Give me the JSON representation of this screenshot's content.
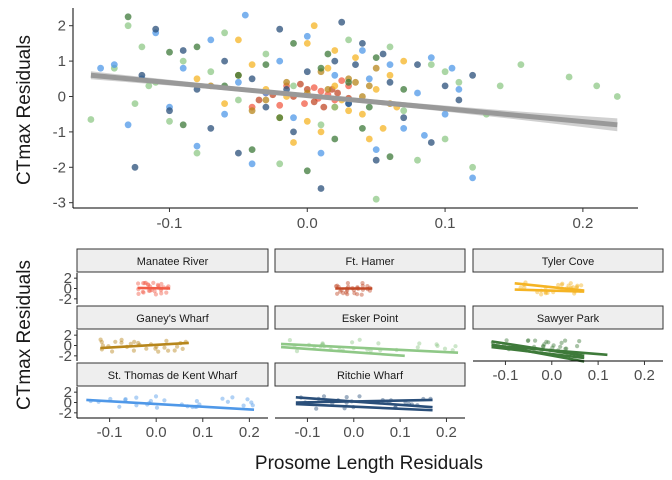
{
  "chart_data": [
    {
      "type": "scatter",
      "title": "",
      "xlabel": "",
      "ylabel": "CTmax Residuals",
      "xlim": [
        -0.17,
        0.24
      ],
      "ylim": [
        -3.15,
        2.5
      ],
      "xticks": [
        "-0.1",
        "0.0",
        "0.1",
        "0.2"
      ],
      "yticks": [
        "-3",
        "-2",
        "-1",
        "0",
        "1",
        "2"
      ],
      "grid": false,
      "legend": "none",
      "trend": {
        "x": [
          -0.157,
          0.225
        ],
        "y": [
          0.6,
          -0.8
        ],
        "ci_half_width_ends": 0.18,
        "ci_half_width_mid": 0.06
      },
      "series": [
        {
          "color": "#f25c46",
          "values": [
            [
              -0.015,
              0.3
            ],
            [
              -0.03,
              0.1
            ],
            [
              -0.002,
              -0.2
            ],
            [
              0.005,
              0.25
            ],
            [
              0.015,
              0.05
            ],
            [
              0.02,
              -0.1
            ],
            [
              -0.04,
              -0.3
            ],
            [
              0.025,
              0.45
            ],
            [
              0.008,
              -0.05
            ],
            [
              -0.02,
              -0.25
            ],
            [
              0.01,
              0.15
            ],
            [
              0.03,
              0.3
            ]
          ]
        },
        {
          "color": "#c24a28",
          "values": [
            [
              -0.01,
              0.0
            ],
            [
              0.005,
              -0.15
            ],
            [
              0.018,
              0.2
            ],
            [
              -0.025,
              0.05
            ],
            [
              0.012,
              -0.3
            ],
            [
              0.022,
              0.1
            ],
            [
              -0.005,
              0.35
            ],
            [
              0.03,
              -0.05
            ],
            [
              -0.035,
              -0.1
            ],
            [
              0.0,
              0.2
            ]
          ]
        },
        {
          "color": "#f5b424",
          "values": [
            [
              -0.08,
              0.5
            ],
            [
              -0.06,
              -0.2
            ],
            [
              -0.04,
              0.9
            ],
            [
              -0.02,
              -0.6
            ],
            [
              0.0,
              1.5
            ],
            [
              0.005,
              2.0
            ],
            [
              0.01,
              -1.0
            ],
            [
              0.02,
              0.3
            ],
            [
              0.03,
              -0.4
            ],
            [
              0.035,
              1.1
            ],
            [
              0.045,
              -1.2
            ],
            [
              0.05,
              0.2
            ],
            [
              0.055,
              -0.9
            ],
            [
              0.06,
              0.6
            ],
            [
              0.065,
              -0.3
            ],
            [
              -0.03,
              0.2
            ],
            [
              -0.01,
              -1.3
            ],
            [
              0.015,
              0.8
            ],
            [
              0.025,
              -0.1
            ],
            [
              0.04,
              -0.5
            ],
            [
              0.07,
              1.0
            ],
            [
              -0.05,
              1.6
            ],
            [
              0.0,
              -0.7
            ],
            [
              0.02,
              1.3
            ],
            [
              -0.015,
              0.0
            ]
          ]
        },
        {
          "color": "#b7861b",
          "values": [
            [
              -0.07,
              0.3
            ],
            [
              -0.05,
              0.6
            ],
            [
              -0.03,
              -0.1
            ],
            [
              -0.015,
              0.4
            ],
            [
              0.0,
              0.1
            ],
            [
              0.01,
              0.7
            ],
            [
              0.02,
              -0.3
            ],
            [
              0.03,
              0.5
            ],
            [
              0.04,
              0.0
            ],
            [
              0.05,
              0.8
            ],
            [
              0.06,
              -0.2
            ],
            [
              0.015,
              0.2
            ],
            [
              0.035,
              0.4
            ],
            [
              -0.04,
              -0.4
            ],
            [
              0.045,
              0.3
            ]
          ]
        },
        {
          "color": "#8fc887",
          "values": [
            [
              -0.157,
              -0.65
            ],
            [
              -0.13,
              2.0
            ],
            [
              -0.125,
              -0.2
            ],
            [
              -0.12,
              1.4
            ],
            [
              -0.11,
              0.4
            ],
            [
              -0.1,
              -0.7
            ],
            [
              -0.09,
              1.0
            ],
            [
              -0.08,
              -1.6
            ],
            [
              -0.07,
              0.7
            ],
            [
              -0.05,
              -0.1
            ],
            [
              -0.03,
              1.2
            ],
            [
              -0.02,
              -1.9
            ],
            [
              -0.01,
              0.3
            ],
            [
              0.01,
              -0.8
            ],
            [
              0.03,
              1.6
            ],
            [
              0.05,
              -2.9
            ],
            [
              0.07,
              -0.4
            ],
            [
              0.09,
              0.9
            ],
            [
              0.1,
              -1.2
            ],
            [
              0.12,
              -2.0
            ],
            [
              0.14,
              0.3
            ],
            [
              0.155,
              0.9
            ],
            [
              0.19,
              0.55
            ],
            [
              0.21,
              0.3
            ],
            [
              0.225,
              0.0
            ],
            [
              0.11,
              0.4
            ],
            [
              -0.14,
              0.8
            ],
            [
              0.06,
              1.4
            ],
            [
              0.08,
              -1.8
            ],
            [
              0.13,
              -0.5
            ],
            [
              -0.06,
              1.8
            ],
            [
              0.02,
              -0.3
            ],
            [
              0.1,
              0.7
            ],
            [
              -0.115,
              0.3
            ]
          ]
        },
        {
          "color": "#3e7a3a",
          "values": [
            [
              -0.13,
              2.25
            ],
            [
              -0.1,
              1.25
            ],
            [
              -0.09,
              -0.8
            ],
            [
              -0.08,
              1.4
            ],
            [
              -0.06,
              0.3
            ],
            [
              -0.04,
              -1.5
            ],
            [
              -0.03,
              0.9
            ],
            [
              -0.02,
              -0.6
            ],
            [
              -0.01,
              1.5
            ],
            [
              0.0,
              -2.1
            ],
            [
              0.01,
              0.8
            ],
            [
              0.02,
              -1.2
            ],
            [
              0.03,
              0.4
            ],
            [
              0.04,
              -0.9
            ],
            [
              0.05,
              1.1
            ],
            [
              0.06,
              -1.7
            ],
            [
              0.07,
              0.2
            ],
            [
              -0.05,
              0.6
            ],
            [
              0.015,
              1.2
            ],
            [
              0.045,
              -0.3
            ]
          ]
        },
        {
          "color": "#4f98e8",
          "values": [
            [
              -0.14,
              0.9
            ],
            [
              -0.13,
              -0.8
            ],
            [
              -0.12,
              0.5
            ],
            [
              -0.11,
              1.8
            ],
            [
              -0.1,
              -0.3
            ],
            [
              -0.09,
              0.8
            ],
            [
              -0.08,
              -1.4
            ],
            [
              -0.07,
              1.6
            ],
            [
              -0.05,
              0.4
            ],
            [
              -0.045,
              2.3
            ],
            [
              -0.04,
              -1.9
            ],
            [
              -0.03,
              0.1
            ],
            [
              -0.02,
              1.0
            ],
            [
              -0.01,
              -0.6
            ],
            [
              0.0,
              1.7
            ],
            [
              0.01,
              -1.6
            ],
            [
              0.02,
              0.6
            ],
            [
              0.03,
              -0.2
            ],
            [
              0.04,
              1.3
            ],
            [
              0.05,
              -1.5
            ],
            [
              0.06,
              0.9
            ],
            [
              0.07,
              -0.9
            ],
            [
              0.08,
              0.1
            ],
            [
              0.09,
              1.1
            ],
            [
              0.1,
              -0.5
            ],
            [
              0.11,
              0.2
            ],
            [
              0.12,
              -2.3
            ],
            [
              0.105,
              0.8
            ],
            [
              -0.15,
              0.8
            ],
            [
              0.085,
              -1.1
            ],
            [
              -0.06,
              -0.5
            ],
            [
              0.045,
              0.5
            ]
          ]
        },
        {
          "color": "#2a4f7a",
          "values": [
            [
              -0.125,
              -2.0
            ],
            [
              -0.12,
              0.6
            ],
            [
              -0.11,
              1.9
            ],
            [
              -0.1,
              -0.4
            ],
            [
              -0.09,
              1.3
            ],
            [
              -0.08,
              0.2
            ],
            [
              -0.07,
              -0.9
            ],
            [
              -0.06,
              1.0
            ],
            [
              -0.05,
              -1.6
            ],
            [
              -0.04,
              0.5
            ],
            [
              -0.03,
              -0.3
            ],
            [
              -0.02,
              1.9
            ],
            [
              -0.01,
              -1.0
            ],
            [
              0.0,
              0.7
            ],
            [
              0.01,
              -2.6
            ],
            [
              0.02,
              1.0
            ],
            [
              0.025,
              2.1
            ],
            [
              0.03,
              -0.2
            ],
            [
              0.04,
              1.5
            ],
            [
              0.05,
              -1.8
            ],
            [
              0.06,
              0.4
            ],
            [
              0.07,
              -0.6
            ],
            [
              0.08,
              0.9
            ],
            [
              0.09,
              -1.3
            ],
            [
              0.1,
              0.3
            ],
            [
              0.11,
              -0.1
            ],
            [
              0.12,
              0.6
            ],
            [
              -0.015,
              0.2
            ],
            [
              0.035,
              0.9
            ],
            [
              0.055,
              1.2
            ]
          ]
        }
      ]
    },
    {
      "type": "scatter",
      "facets": true,
      "xlabel": "Prosome Length Residuals",
      "ylabel": "CTmax Residuals",
      "facet_xlim": [
        -0.17,
        0.24
      ],
      "facet_ylim": [
        -3,
        3
      ],
      "xticks": [
        "-0.1",
        "0.0",
        "0.1",
        "0.2"
      ],
      "yticks": [
        "-2",
        "0",
        "2"
      ],
      "panels": [
        {
          "name": "Manatee River",
          "color": "#f25c46",
          "x_range": [
            -0.04,
            0.03
          ],
          "lines": [
            [
              -0.04,
              0.1,
              0.03,
              0.0
            ]
          ]
        },
        {
          "name": "Ft. Hamer",
          "color": "#c24a28",
          "x_range": [
            -0.04,
            0.04
          ],
          "lines": [
            [
              -0.04,
              0.0,
              0.04,
              0.0
            ]
          ]
        },
        {
          "name": "Tyler Cove",
          "color": "#f5b424",
          "x_range": [
            -0.08,
            0.07
          ],
          "lines": [
            [
              -0.08,
              1.0,
              0.07,
              -0.4
            ],
            [
              -0.08,
              -0.2,
              0.07,
              -0.6
            ]
          ]
        },
        {
          "name": "Ganey's Wharf",
          "color": "#b7861b",
          "x_range": [
            -0.12,
            0.07
          ],
          "lines": [
            [
              -0.12,
              -0.5,
              0.07,
              0.5
            ]
          ]
        },
        {
          "name": "Esker Point",
          "color": "#8fc887",
          "x_range": [
            -0.157,
            0.225
          ],
          "lines": [
            [
              -0.157,
              0.3,
              0.225,
              -1.4
            ],
            [
              -0.157,
              -0.3,
              0.11,
              -2.0
            ]
          ]
        },
        {
          "name": "Sawyer Park",
          "color": "#3e7a3a",
          "x_range": [
            -0.13,
            0.07
          ],
          "lines": [
            [
              -0.13,
              0.8,
              0.07,
              -2.0
            ],
            [
              -0.13,
              0.2,
              0.07,
              -3.1
            ],
            [
              -0.13,
              -0.3,
              0.07,
              -2.4
            ],
            [
              -0.13,
              0.0,
              0.12,
              -1.8
            ]
          ]
        },
        {
          "name": "St. Thomas de Kent Wharf",
          "color": "#4f98e8",
          "x_range": [
            -0.15,
            0.21
          ],
          "lines": [
            [
              -0.15,
              0.5,
              0.21,
              -1.4
            ]
          ]
        },
        {
          "name": "Ritchie Wharf",
          "color": "#2a4f7a",
          "x_range": [
            -0.125,
            0.17
          ],
          "lines": [
            [
              -0.125,
              1.0,
              0.17,
              -0.9
            ],
            [
              -0.125,
              0.0,
              0.17,
              0.5
            ],
            [
              -0.125,
              -0.3,
              0.17,
              -1.5
            ]
          ]
        }
      ]
    }
  ]
}
